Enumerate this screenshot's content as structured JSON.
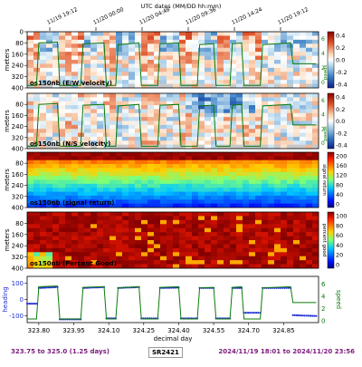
{
  "header": {
    "title": "UTC dates (MM/DD hh:mm)"
  },
  "time_ticks": [
    "11/19 19:12",
    "11/20 00:00",
    "11/20 04:48",
    "11/20 09:36",
    "11/20 14:24",
    "11/20 19:12"
  ],
  "footer": {
    "range": "323.75 to 325.0 (1.25 days)",
    "cruise": "SR2421",
    "dates": "2024/11/19 18:01 to 2024/11/20 23:56"
  },
  "colors": {
    "ship_track": "#0a7a0a",
    "heading": "#1f2fd0",
    "footer_text": "#7a1a7a"
  },
  "chart_data": [
    {
      "type": "heatmap",
      "name": "os150nb (E/W velocity)",
      "ylabel": "meters",
      "yticks": [
        "0",
        "80",
        "160",
        "240",
        "320",
        "400"
      ],
      "ylim": [
        400,
        0
      ],
      "colorbar_ticks": [
        "0.4",
        "0.2",
        "0.0",
        "-0.2",
        "-0.4"
      ],
      "colorscale": "diverging blue-white-red",
      "right_axis_label": "speed",
      "right_ticks": [
        "6",
        "4",
        "2",
        "0"
      ]
    },
    {
      "type": "heatmap",
      "name": "os150nb (N/S velocity)",
      "ylabel": "meters",
      "yticks": [
        "80",
        "160",
        "240",
        "320",
        "400"
      ],
      "ylim": [
        400,
        0
      ],
      "colorbar_ticks": [
        "0.4",
        "0.2",
        "0.0",
        "-0.2",
        "-0.4"
      ],
      "colorscale": "diverging blue-white-red",
      "right_axis_label": "speed",
      "right_ticks": [
        "6",
        "4",
        "2",
        "0"
      ]
    },
    {
      "type": "heatmap",
      "name": "os150nb (signal return)",
      "ylabel": "meters",
      "yticks": [
        "80",
        "160",
        "240",
        "320",
        "400"
      ],
      "ylim": [
        400,
        0
      ],
      "colorbar_ticks": [
        "200",
        "160",
        "120",
        "80",
        "40",
        "0"
      ],
      "colorbar_label": "signal return",
      "colorscale": "jet"
    },
    {
      "type": "heatmap",
      "name": "os150nb (Percent Good)",
      "ylabel": "meters",
      "yticks": [
        "80",
        "160",
        "240",
        "320",
        "400"
      ],
      "ylim": [
        400,
        0
      ],
      "colorbar_ticks": [
        "100",
        "80",
        "60",
        "40",
        "20",
        "0"
      ],
      "colorbar_label": "percent good",
      "colorscale": "jet"
    },
    {
      "type": "line",
      "name": "heading / speed",
      "ylabel": "heading",
      "yticks": [
        "100",
        "0",
        "-100"
      ],
      "right_axis_label": "speed",
      "right_ticks": [
        "6",
        "4",
        "2",
        "0"
      ],
      "xlabel": "decimal day",
      "xticks": [
        "323.80",
        "323.95",
        "324.10",
        "324.25",
        "324.40",
        "324.55",
        "324.70",
        "324.85"
      ],
      "xlim": [
        323.75,
        325.0
      ],
      "series": [
        {
          "name": "heading",
          "x": [
            323.75,
            323.79,
            323.8,
            323.88,
            323.89,
            323.98,
            323.99,
            324.08,
            324.09,
            324.13,
            324.14,
            324.23,
            324.24,
            324.31,
            324.32,
            324.4,
            324.41,
            324.48,
            324.49,
            324.55,
            324.56,
            324.62,
            324.63,
            324.67,
            324.68,
            324.75,
            324.76,
            324.88,
            324.89,
            324.99
          ],
          "y": [
            -25,
            -25,
            70,
            75,
            -120,
            -120,
            70,
            75,
            -115,
            -115,
            70,
            75,
            -115,
            -115,
            70,
            72,
            -115,
            -115,
            70,
            70,
            -115,
            -115,
            70,
            70,
            -80,
            -80,
            70,
            70,
            -95,
            -100
          ]
        },
        {
          "name": "speed",
          "x": [
            323.75,
            323.79,
            323.8,
            323.88,
            323.89,
            323.98,
            323.99,
            324.08,
            324.09,
            324.13,
            324.14,
            324.23,
            324.24,
            324.31,
            324.32,
            324.4,
            324.41,
            324.48,
            324.49,
            324.55,
            324.56,
            324.62,
            324.63,
            324.67,
            324.68,
            324.75,
            324.76,
            324.88,
            324.89,
            324.99
          ],
          "y": [
            0.3,
            0.3,
            5.6,
            5.7,
            0.3,
            0.3,
            5.5,
            5.6,
            0.3,
            0.3,
            5.4,
            5.6,
            0.3,
            0.3,
            5.5,
            5.6,
            0.3,
            0.3,
            5.4,
            5.5,
            0.3,
            0.3,
            5.5,
            5.6,
            0.3,
            0.3,
            5.4,
            5.6,
            3.0,
            3.0
          ]
        }
      ]
    }
  ]
}
